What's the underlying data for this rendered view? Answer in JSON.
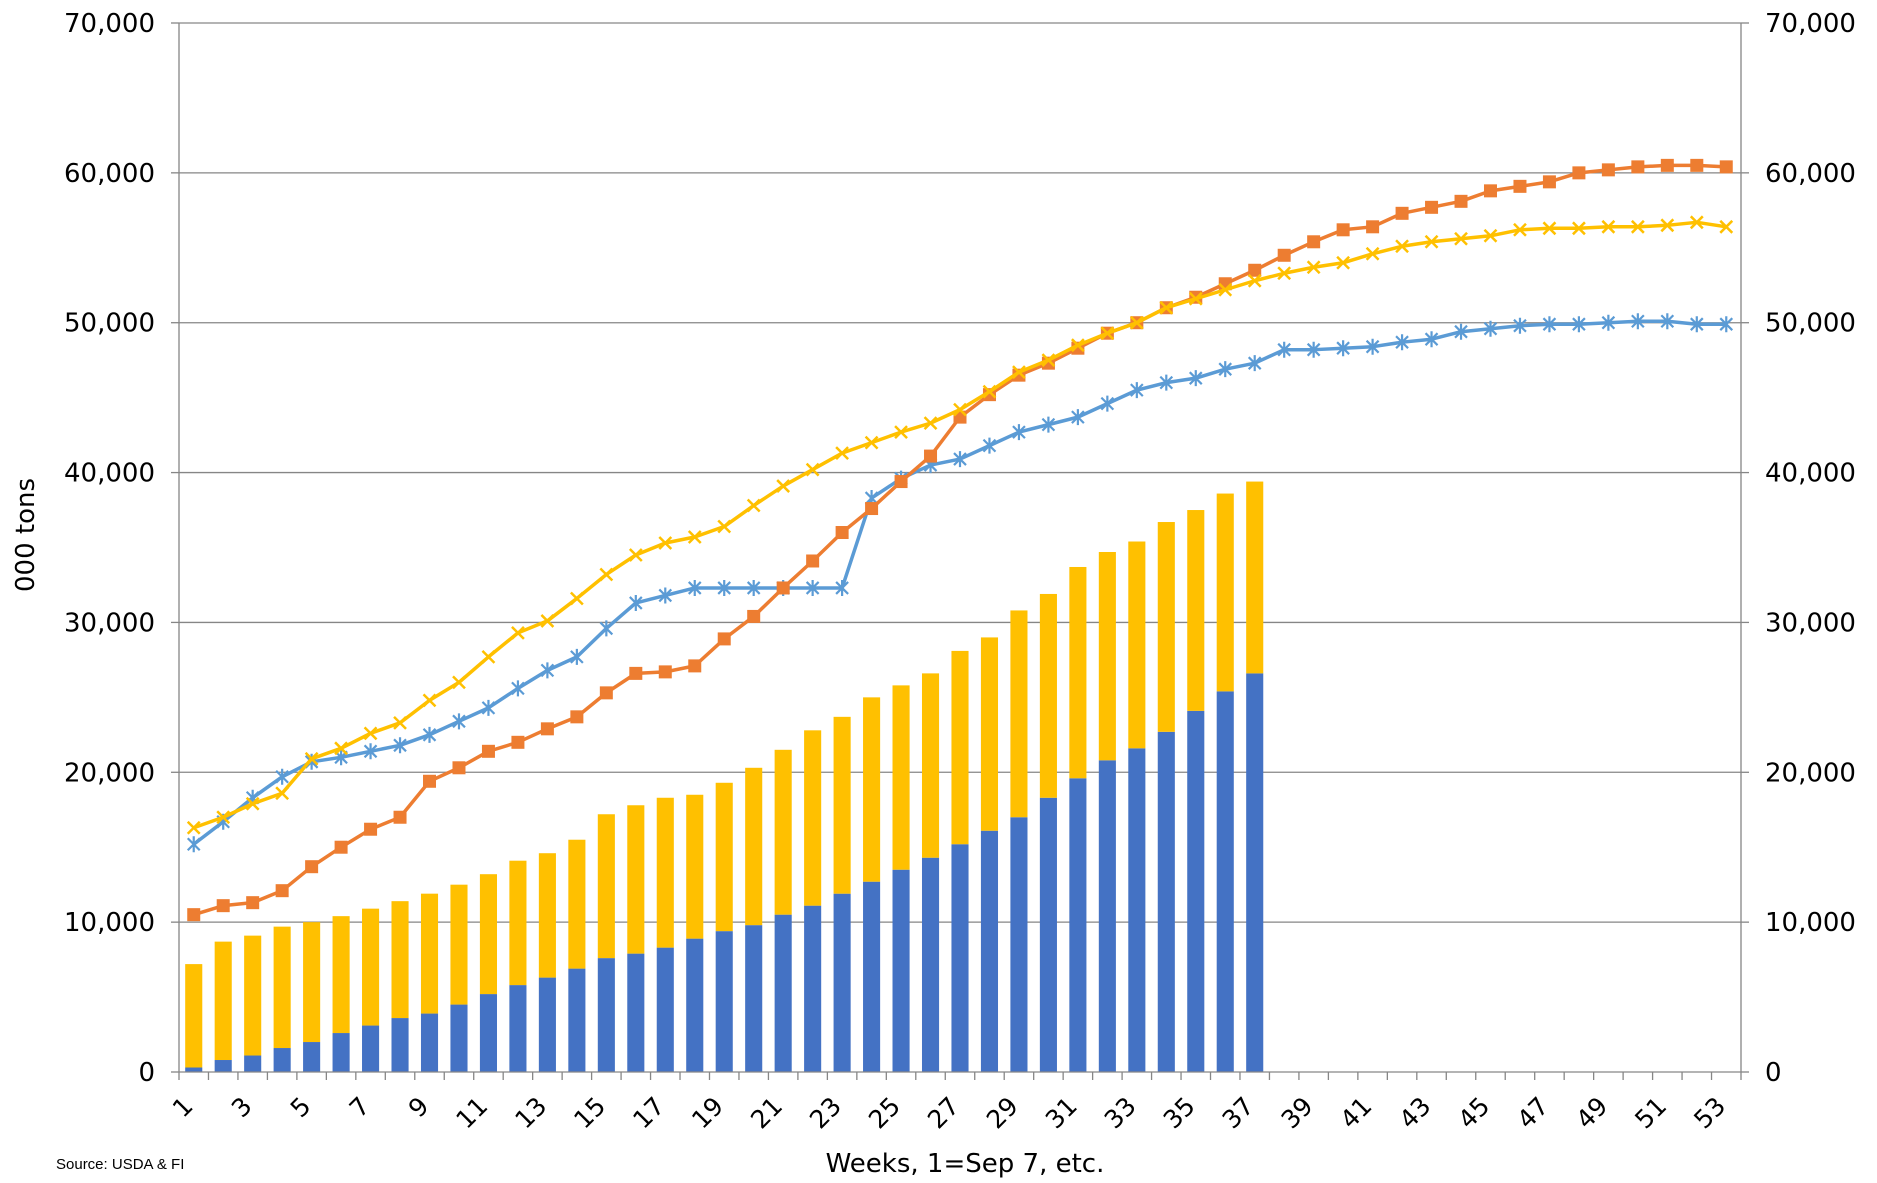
{
  "chart_data": {
    "type": "bar+line",
    "title": "",
    "xlabel": "Weeks, 1=Sep 7, etc.",
    "ylabel": "000 tons",
    "source": "Source: USDA & FI",
    "ylim": [
      0,
      70000
    ],
    "yticks": [
      0,
      10000,
      20000,
      30000,
      40000,
      50000,
      60000,
      70000
    ],
    "ytick_labels": [
      "0",
      "10,000",
      "20,000",
      "30,000",
      "40,000",
      "50,000",
      "60,000",
      "70,000"
    ],
    "y2ticks": [
      0,
      10000,
      20000,
      30000,
      40000,
      50000,
      60000,
      70000
    ],
    "y2tick_labels": [
      "0",
      "10,000",
      "20,000",
      "30,000",
      "40,000",
      "50,000",
      "60,000",
      "70,000"
    ],
    "x_label_every": 2,
    "grid": "horizontal",
    "legend": "none",
    "x": [
      1,
      2,
      3,
      4,
      5,
      6,
      7,
      8,
      9,
      10,
      11,
      12,
      13,
      14,
      15,
      16,
      17,
      18,
      19,
      20,
      21,
      22,
      23,
      24,
      25,
      26,
      27,
      28,
      29,
      30,
      31,
      32,
      33,
      34,
      35,
      36,
      37,
      38,
      39,
      40,
      41,
      42,
      43,
      44,
      45,
      46,
      47,
      48,
      49,
      50,
      51,
      52,
      53
    ],
    "bars": {
      "stacked": true,
      "series": [
        {
          "color": "#4472c4",
          "values": [
            300,
            800,
            1100,
            1600,
            2000,
            2600,
            3100,
            3600,
            3900,
            4500,
            5200,
            5800,
            6300,
            6900,
            7600,
            7900,
            8300,
            8900,
            9400,
            9800,
            10500,
            11100,
            11900,
            12700,
            13500,
            14300,
            15200,
            16100,
            17000,
            18300,
            19600,
            20800,
            21600,
            22700,
            24100,
            25400,
            26600
          ]
        },
        {
          "color": "#ffc000",
          "values": [
            6900,
            7900,
            8000,
            8100,
            8000,
            7800,
            7800,
            7800,
            8000,
            8000,
            8000,
            8300,
            8300,
            8600,
            9600,
            9900,
            10000,
            9600,
            9900,
            10500,
            11000,
            11700,
            11800,
            12300,
            12300,
            12300,
            12900,
            12900,
            13800,
            13600,
            14100,
            13900,
            13800,
            14000,
            13400,
            13200,
            12800
          ]
        }
      ]
    },
    "lines": [
      {
        "color": "#5b9bd5",
        "marker": "star",
        "values": [
          15200,
          16700,
          18300,
          19700,
          20700,
          21000,
          21400,
          21800,
          22500,
          23400,
          24300,
          25600,
          26800,
          27700,
          29600,
          31300,
          31800,
          32300,
          32300,
          32300,
          32300,
          32300,
          32300,
          38300,
          39600,
          40500,
          40900,
          41800,
          42700,
          43200,
          43700,
          44600,
          45500,
          46000,
          46300,
          46900,
          47300,
          48200,
          48200,
          48300,
          48400,
          48700,
          48900,
          49400,
          49600,
          49800,
          49900,
          49900,
          50000,
          50100,
          50100,
          49900,
          49900
        ]
      },
      {
        "color": "#ed7d31",
        "marker": "square",
        "values": [
          10500,
          11100,
          11300,
          12100,
          13700,
          15000,
          16200,
          17000,
          19400,
          20300,
          21400,
          22000,
          22900,
          23700,
          25300,
          26600,
          26700,
          27100,
          28900,
          30400,
          32300,
          34100,
          36000,
          37600,
          39400,
          41100,
          43700,
          45200,
          46500,
          47300,
          48300,
          49300,
          50000,
          51000,
          51700,
          52600,
          53500,
          54500,
          55400,
          56200,
          56400,
          57300,
          57700,
          58100,
          58800,
          59100,
          59400,
          60000,
          60200,
          60400,
          60500,
          60500,
          60400
        ]
      },
      {
        "color": "#ffc000",
        "marker": "x",
        "values": [
          16300,
          17000,
          17900,
          18600,
          20900,
          21600,
          22600,
          23300,
          24800,
          26000,
          27700,
          29300,
          30100,
          31600,
          33200,
          34500,
          35300,
          35700,
          36400,
          37800,
          39100,
          40200,
          41300,
          42000,
          42700,
          43300,
          44200,
          45400,
          46700,
          47500,
          48500,
          49300,
          50000,
          51000,
          51600,
          52200,
          52800,
          53300,
          53700,
          54000,
          54600,
          55100,
          55400,
          55600,
          55800,
          56200,
          56300,
          56300,
          56400,
          56400,
          56500,
          56700,
          56400
        ]
      }
    ]
  }
}
